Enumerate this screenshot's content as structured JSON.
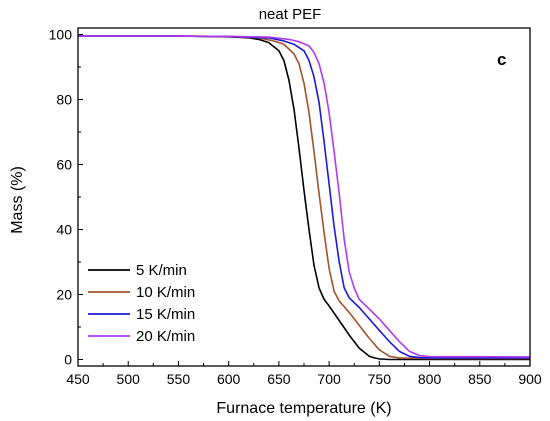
{
  "chart_data": {
    "type": "line",
    "title": "neat PEF",
    "panel_label": "c",
    "xlabel": "Furnace temperature (K)",
    "ylabel": "Mass (%)",
    "xlim": [
      450,
      900
    ],
    "ylim": [
      -2,
      102
    ],
    "xticks": [
      450,
      500,
      550,
      600,
      650,
      700,
      750,
      800,
      850,
      900
    ],
    "yticks": [
      0,
      20,
      40,
      60,
      80,
      100
    ],
    "grid": false,
    "legend_position": "bottom-left",
    "series": [
      {
        "name": "5 K/min",
        "color": "#000000",
        "x": [
          450,
          550,
          600,
          620,
          630,
          640,
          650,
          655,
          660,
          665,
          670,
          675,
          680,
          685,
          690,
          695,
          700,
          710,
          720,
          730,
          740,
          745,
          750,
          760,
          800,
          900
        ],
        "y": [
          99.5,
          99.5,
          99.3,
          99,
          98.5,
          97.5,
          95,
          92,
          86,
          77,
          65,
          52,
          40,
          29,
          22,
          18.5,
          16.5,
          12,
          7.5,
          3.5,
          1,
          0.5,
          0.2,
          0,
          0,
          0
        ]
      },
      {
        "name": "10 K/min",
        "color": "#a0522d",
        "x": [
          450,
          550,
          600,
          630,
          645,
          655,
          665,
          670,
          675,
          680,
          685,
          690,
          695,
          700,
          705,
          710,
          720,
          730,
          740,
          750,
          760,
          770,
          800,
          900
        ],
        "y": [
          99.5,
          99.5,
          99.4,
          99,
          98,
          97,
          94,
          91,
          85,
          76,
          64,
          51,
          39,
          28,
          21,
          18,
          14.5,
          10.5,
          6.5,
          3,
          1,
          0.5,
          0.3,
          0.3
        ]
      },
      {
        "name": "15 K/min",
        "color": "#1a1ad4",
        "x": [
          450,
          550,
          600,
          640,
          655,
          665,
          675,
          680,
          685,
          690,
          695,
          700,
          705,
          710,
          715,
          720,
          730,
          740,
          750,
          760,
          770,
          780,
          790,
          800,
          900
        ],
        "y": [
          99.5,
          99.5,
          99.4,
          99,
          98,
          97,
          95,
          92,
          87,
          79,
          67,
          54,
          41,
          30,
          22,
          19,
          16,
          12.5,
          9,
          5.5,
          2.5,
          1,
          0.6,
          0.5,
          0.5
        ]
      },
      {
        "name": "20 K/min",
        "color": "#b03af0",
        "x": [
          450,
          550,
          600,
          640,
          660,
          670,
          680,
          685,
          690,
          695,
          700,
          705,
          710,
          715,
          720,
          725,
          730,
          740,
          750,
          760,
          770,
          780,
          790,
          800,
          900
        ],
        "y": [
          99.5,
          99.5,
          99.4,
          99.2,
          98.5,
          97.8,
          96.5,
          94.5,
          91,
          85,
          76,
          64,
          51,
          37,
          27,
          22,
          18.5,
          15.5,
          12.5,
          9,
          5.5,
          2.5,
          1.2,
          0.9,
          0.8
        ]
      }
    ]
  }
}
